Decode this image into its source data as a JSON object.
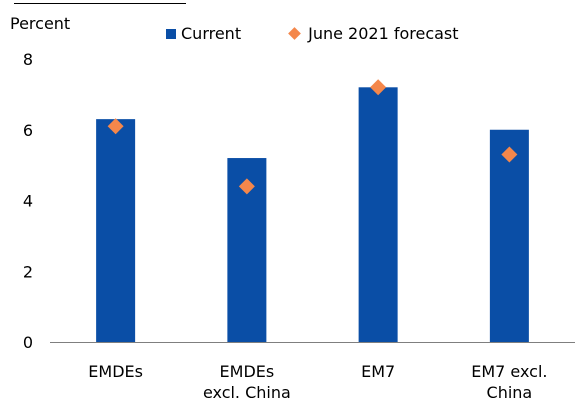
{
  "chart_data": {
    "type": "bar",
    "ylabel": "Percent",
    "ylim": [
      0,
      8
    ],
    "yticks": [
      0,
      2,
      4,
      6,
      8
    ],
    "categories": [
      [
        "EMDEs"
      ],
      [
        "EMDEs",
        "excl. China"
      ],
      [
        "EM7"
      ],
      [
        "EM7 excl.",
        "China"
      ]
    ],
    "series": [
      {
        "name": "Current",
        "type": "bar",
        "color": "#0a4ea6",
        "values": [
          6.3,
          5.2,
          7.2,
          6.0
        ]
      },
      {
        "name": "June 2021 forecast",
        "type": "marker",
        "marker": "diamond",
        "color": "#f4874b",
        "values": [
          6.1,
          4.4,
          7.2,
          5.3
        ]
      }
    ],
    "legend_position": "top",
    "grid": false
  }
}
